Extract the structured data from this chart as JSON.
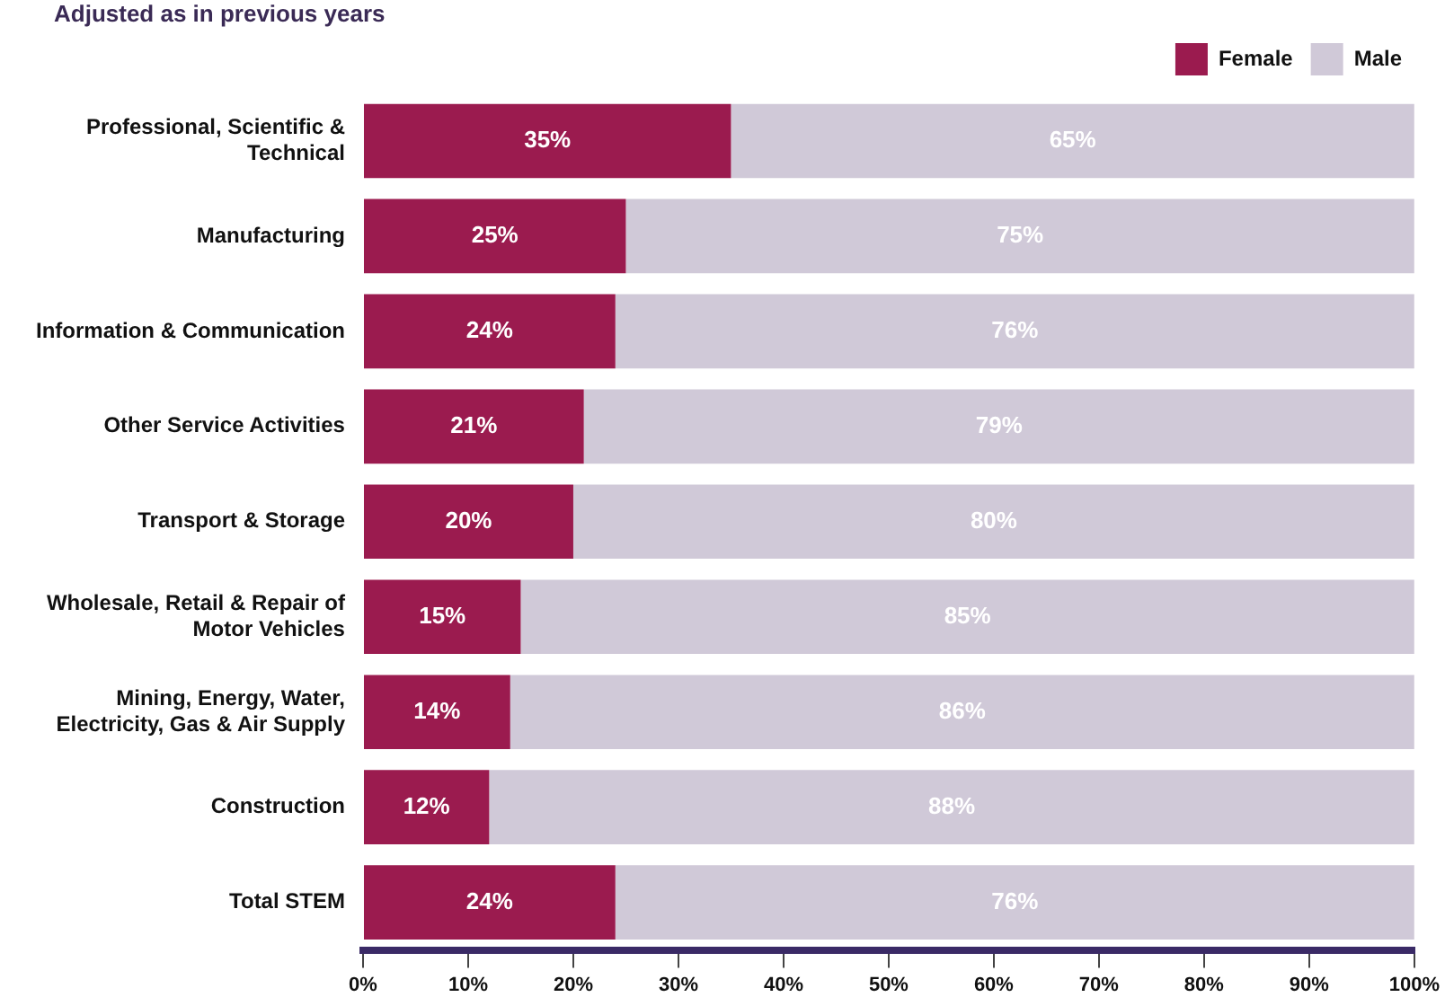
{
  "chart_data": {
    "type": "bar",
    "orientation": "horizontal",
    "stacked": true,
    "subtitle": "Adjusted as in previous years",
    "categories": [
      "Professional, Scientific & Technical",
      "Manufacturing",
      "Information & Communication",
      "Other Service Activities",
      "Transport & Storage",
      "Wholesale, Retail & Repair of Motor Vehicles",
      "Mining, Energy, Water, Electricity, Gas & Air Supply",
      "Construction",
      "Total STEM"
    ],
    "series": [
      {
        "name": "Female",
        "color": "#9b1b4f",
        "values": [
          35,
          25,
          24,
          21,
          20,
          15,
          14,
          12,
          24
        ],
        "value_labels": [
          "35%",
          "25%",
          "24%",
          "21%",
          "20%",
          "15%",
          "14%",
          "12%",
          "24%"
        ]
      },
      {
        "name": "Male",
        "color": "#d0c9d8",
        "values": [
          65,
          75,
          76,
          79,
          80,
          85,
          86,
          88,
          76
        ],
        "value_labels": [
          "65%",
          "75%",
          "76%",
          "79%",
          "80%",
          "85%",
          "86%",
          "88%",
          "76%"
        ]
      }
    ],
    "xlim": [
      0,
      100
    ],
    "xticks": [
      {
        "value": 0,
        "label": "0%"
      },
      {
        "value": 10,
        "label": "10%"
      },
      {
        "value": 20,
        "label": "20%"
      },
      {
        "value": 30,
        "label": "30%"
      },
      {
        "value": 40,
        "label": "40%"
      },
      {
        "value": 50,
        "label": "50%"
      },
      {
        "value": 60,
        "label": "60%"
      },
      {
        "value": 70,
        "label": "70%"
      },
      {
        "value": 80,
        "label": "80%"
      },
      {
        "value": 90,
        "label": "90%"
      },
      {
        "value": 100,
        "label": "100%"
      }
    ],
    "grid": false,
    "legend": "top right"
  }
}
